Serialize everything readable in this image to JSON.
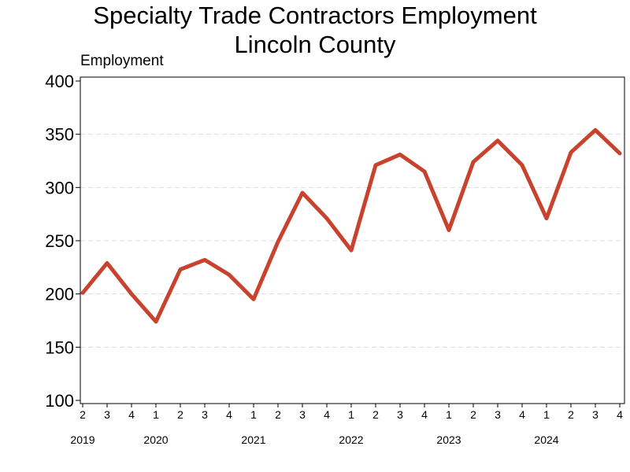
{
  "chart_data": {
    "type": "line",
    "title": "Specialty Trade Contractors Employment",
    "subtitle": "Lincoln County",
    "ylabel": "Employment",
    "ylim": [
      100,
      400
    ],
    "yticks": [
      100,
      150,
      200,
      250,
      300,
      350,
      400
    ],
    "grid": "horizontal dashed",
    "line_color": "#c8432e",
    "x_quarters": [
      "2",
      "3",
      "4",
      "1",
      "2",
      "3",
      "4",
      "1",
      "2",
      "3",
      "4",
      "1",
      "2",
      "3",
      "4",
      "1",
      "2",
      "3",
      "4",
      "1",
      "2",
      "3",
      "4"
    ],
    "x_years": [
      {
        "label": "2019",
        "at_index": 0
      },
      {
        "label": "2020",
        "at_index": 3
      },
      {
        "label": "2021",
        "at_index": 7
      },
      {
        "label": "2022",
        "at_index": 11
      },
      {
        "label": "2023",
        "at_index": 15
      },
      {
        "label": "2024",
        "at_index": 19
      }
    ],
    "series": [
      {
        "values": [
          201,
          229,
          200,
          174,
          223,
          232,
          218,
          195,
          249,
          295,
          271,
          241,
          321,
          331,
          315,
          260,
          324,
          344,
          321,
          271,
          333,
          354,
          332
        ]
      }
    ]
  }
}
